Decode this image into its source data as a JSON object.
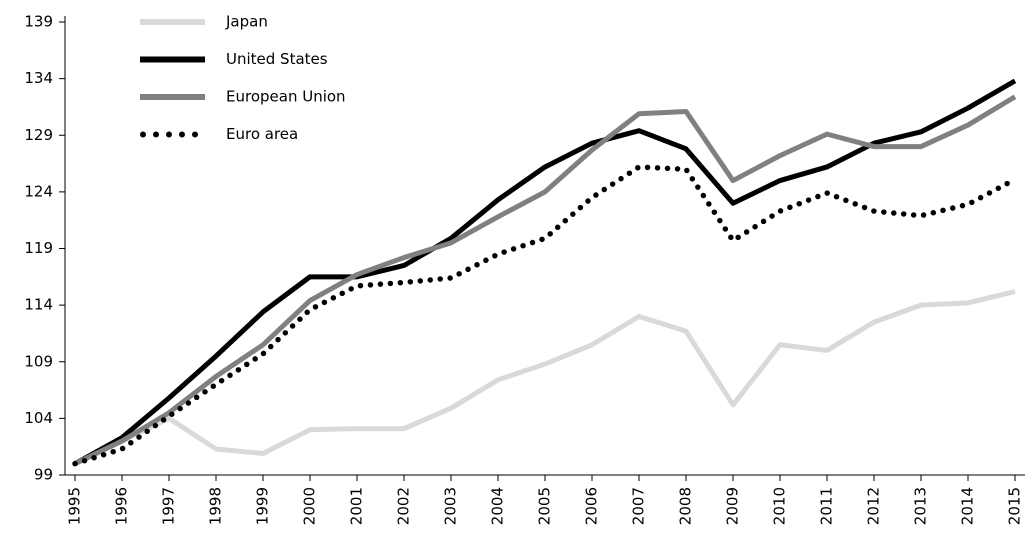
{
  "chart_data": {
    "type": "line",
    "x": [
      "1995",
      "1996",
      "1997",
      "1998",
      "1999",
      "2000",
      "2001",
      "2002",
      "2003",
      "2004",
      "2005",
      "2006",
      "2007",
      "2008",
      "2009",
      "2010",
      "2011",
      "2012",
      "2013",
      "2014",
      "2015"
    ],
    "series": [
      {
        "name": "Japan",
        "color": "#d9d9d9",
        "style": "solid",
        "values": [
          100,
          102,
          104,
          101.3,
          100.9,
          103,
          103.1,
          103.1,
          104.9,
          107.4,
          108.8,
          110.5,
          113,
          111.7,
          105.2,
          110.5,
          110,
          112.5,
          114,
          114.2,
          115.2
        ]
      },
      {
        "name": "United States",
        "color": "#000000",
        "style": "solid",
        "values": [
          100,
          102.3,
          105.8,
          109.5,
          113.4,
          116.5,
          116.5,
          117.5,
          119.9,
          123.3,
          126.2,
          128.3,
          129.4,
          127.8,
          123,
          125,
          126.2,
          128.3,
          129.3,
          131.4,
          133.8
        ]
      },
      {
        "name": "European Union",
        "color": "#808080",
        "style": "solid",
        "values": [
          100,
          102,
          104.5,
          107.7,
          110.5,
          114.4,
          116.7,
          118.2,
          119.5,
          121.8,
          124,
          127.7,
          130.9,
          131.1,
          125,
          127.2,
          129.1,
          128,
          128,
          129.9,
          132.4
        ]
      },
      {
        "name": "Euro area",
        "color": "#000000",
        "style": "dotted",
        "values": [
          100,
          101.3,
          104.2,
          107,
          109.7,
          113.6,
          115.7,
          116,
          116.4,
          118.5,
          119.9,
          123.5,
          126.2,
          126,
          119.7,
          122.3,
          123.9,
          122.3,
          121.9,
          122.9,
          125.1
        ]
      }
    ],
    "ylim": [
      99,
      139
    ],
    "yticks": [
      99,
      104,
      109,
      114,
      119,
      124,
      129,
      134,
      139
    ],
    "legend": "upper-left"
  }
}
